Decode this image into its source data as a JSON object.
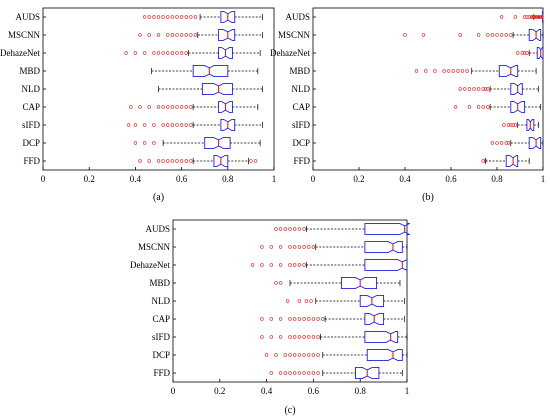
{
  "chart_data": [
    {
      "type": "boxplot",
      "panel_label": "(a)",
      "categories": [
        "AUDS",
        "MSCNN",
        "DehazeNet",
        "MBD",
        "NLD",
        "CAP",
        "sIFD",
        "DCP",
        "FFD"
      ],
      "xlim": [
        0,
        1
      ],
      "xticks": [
        "0",
        "0.2",
        "0.4",
        "0.6",
        "0.8",
        "1"
      ],
      "grid": false,
      "boxes": [
        {
          "q1": 0.77,
          "median": 0.8,
          "q3": 0.83,
          "whisker_low": 0.68,
          "whisker_high": 0.95,
          "outliers": [
            0.44,
            0.46,
            0.48,
            0.5,
            0.52,
            0.54,
            0.56,
            0.58,
            0.6,
            0.62,
            0.64,
            0.66
          ]
        },
        {
          "q1": 0.76,
          "median": 0.8,
          "q3": 0.83,
          "whisker_low": 0.67,
          "whisker_high": 0.95,
          "outliers": [
            0.42,
            0.46,
            0.5,
            0.54,
            0.56,
            0.58,
            0.6,
            0.62,
            0.64,
            0.66
          ]
        },
        {
          "q1": 0.76,
          "median": 0.79,
          "q3": 0.82,
          "whisker_low": 0.63,
          "whisker_high": 0.94,
          "outliers": [
            0.36,
            0.4,
            0.44,
            0.48,
            0.5,
            0.52,
            0.54,
            0.56,
            0.58,
            0.6,
            0.62
          ]
        },
        {
          "q1": 0.65,
          "median": 0.72,
          "q3": 0.8,
          "whisker_low": 0.47,
          "whisker_high": 0.93,
          "outliers": []
        },
        {
          "q1": 0.69,
          "median": 0.76,
          "q3": 0.82,
          "whisker_low": 0.5,
          "whisker_high": 0.95,
          "outliers": []
        },
        {
          "q1": 0.76,
          "median": 0.79,
          "q3": 0.82,
          "whisker_low": 0.65,
          "whisker_high": 0.93,
          "outliers": [
            0.38,
            0.42,
            0.46,
            0.5,
            0.52,
            0.54,
            0.56,
            0.58,
            0.6,
            0.62,
            0.64
          ]
        },
        {
          "q1": 0.77,
          "median": 0.8,
          "q3": 0.83,
          "whisker_low": 0.65,
          "whisker_high": 0.95,
          "outliers": [
            0.37,
            0.4,
            0.44,
            0.48,
            0.52,
            0.54,
            0.56,
            0.58,
            0.6,
            0.62,
            0.64
          ]
        },
        {
          "q1": 0.7,
          "median": 0.76,
          "q3": 0.81,
          "whisker_low": 0.52,
          "whisker_high": 0.94,
          "outliers": [
            0.4,
            0.44,
            0.48
          ]
        },
        {
          "q1": 0.74,
          "median": 0.77,
          "q3": 0.8,
          "whisker_low": 0.65,
          "whisker_high": 0.89,
          "outliers": [
            0.42,
            0.46,
            0.5,
            0.52,
            0.54,
            0.56,
            0.58,
            0.6,
            0.62,
            0.64,
            0.9,
            0.92
          ]
        }
      ]
    },
    {
      "type": "boxplot",
      "panel_label": "(b)",
      "categories": [
        "AUDS",
        "MSCNN",
        "DehazeNet",
        "MBD",
        "NLD",
        "CAP",
        "sIFD",
        "DCP",
        "FFD"
      ],
      "xlim": [
        0,
        1
      ],
      "xticks": [
        "0",
        "0.2",
        "0.4",
        "0.6",
        "0.8",
        "1"
      ],
      "grid": false,
      "boxes": [
        {
          "q1": 0.998,
          "median": 0.999,
          "q3": 1.0,
          "whisker_low": 0.96,
          "whisker_high": 1.0,
          "outliers": [
            0.82,
            0.88,
            0.92,
            0.93,
            0.94,
            0.95,
            0.955,
            0.96,
            0.965,
            0.97,
            0.975,
            0.98,
            0.985,
            0.99,
            0.995
          ]
        },
        {
          "q1": 0.94,
          "median": 0.97,
          "q3": 0.99,
          "whisker_low": 0.87,
          "whisker_high": 1.0,
          "outliers": [
            0.4,
            0.48,
            0.64,
            0.72,
            0.76,
            0.78,
            0.8,
            0.82,
            0.84,
            0.86
          ]
        },
        {
          "q1": 0.975,
          "median": 0.99,
          "q3": 1.0,
          "whisker_low": 0.94,
          "whisker_high": 1.0,
          "outliers": [
            0.89,
            0.91,
            0.92,
            0.93
          ]
        },
        {
          "q1": 0.81,
          "median": 0.86,
          "q3": 0.89,
          "whisker_low": 0.69,
          "whisker_high": 0.97,
          "outliers": [
            0.45,
            0.49,
            0.53,
            0.57,
            0.59,
            0.61,
            0.63,
            0.65,
            0.67
          ]
        },
        {
          "q1": 0.86,
          "median": 0.89,
          "q3": 0.91,
          "whisker_low": 0.77,
          "whisker_high": 0.98,
          "outliers": [
            0.64,
            0.66,
            0.68,
            0.7,
            0.72,
            0.74,
            0.75,
            0.76
          ]
        },
        {
          "q1": 0.86,
          "median": 0.89,
          "q3": 0.92,
          "whisker_low": 0.77,
          "whisker_high": 0.99,
          "outliers": [
            0.62,
            0.68,
            0.72,
            0.74,
            0.76
          ]
        },
        {
          "q1": 0.93,
          "median": 0.945,
          "q3": 0.96,
          "whisker_low": 0.89,
          "whisker_high": 0.98,
          "outliers": [
            0.83,
            0.85,
            0.86,
            0.87,
            0.88
          ]
        },
        {
          "q1": 0.94,
          "median": 0.97,
          "q3": 0.99,
          "whisker_low": 0.86,
          "whisker_high": 1.0,
          "outliers": [
            0.78,
            0.8,
            0.82,
            0.84,
            0.85
          ]
        },
        {
          "q1": 0.84,
          "median": 0.87,
          "q3": 0.89,
          "whisker_low": 0.75,
          "whisker_high": 0.94,
          "outliers": [
            0.74,
            0.75
          ]
        }
      ]
    },
    {
      "type": "boxplot",
      "panel_label": "(c)",
      "categories": [
        "AUDS",
        "MSCNN",
        "DehazeNet",
        "MBD",
        "NLD",
        "CAP",
        "sIFD",
        "DCP",
        "FFD"
      ],
      "xlim": [
        0,
        1
      ],
      "xticks": [
        "0",
        "0.2",
        "0.4",
        "0.6",
        "0.8",
        "1"
      ],
      "grid": false,
      "boxes": [
        {
          "q1": 0.82,
          "median": 0.99,
          "q3": 1.0,
          "whisker_low": 0.57,
          "whisker_high": 1.0,
          "outliers": [
            0.44,
            0.46,
            0.48,
            0.5,
            0.52,
            0.54,
            0.56
          ]
        },
        {
          "q1": 0.82,
          "median": 0.94,
          "q3": 0.98,
          "whisker_low": 0.61,
          "whisker_high": 1.0,
          "outliers": [
            0.38,
            0.42,
            0.46,
            0.5,
            0.52,
            0.54,
            0.56,
            0.58,
            0.6
          ]
        },
        {
          "q1": 0.82,
          "median": 0.98,
          "q3": 1.0,
          "whisker_low": 0.57,
          "whisker_high": 1.0,
          "outliers": [
            0.34,
            0.38,
            0.42,
            0.46,
            0.5,
            0.52,
            0.54,
            0.56
          ]
        },
        {
          "q1": 0.72,
          "median": 0.8,
          "q3": 0.87,
          "whisker_low": 0.5,
          "whisker_high": 0.97,
          "outliers": [
            0.44,
            0.46
          ]
        },
        {
          "q1": 0.8,
          "median": 0.85,
          "q3": 0.9,
          "whisker_low": 0.61,
          "whisker_high": 0.99,
          "outliers": [
            0.49,
            0.54,
            0.57,
            0.59
          ]
        },
        {
          "q1": 0.82,
          "median": 0.86,
          "q3": 0.9,
          "whisker_low": 0.65,
          "whisker_high": 0.99,
          "outliers": [
            0.38,
            0.42,
            0.46,
            0.5,
            0.52,
            0.54,
            0.56,
            0.58,
            0.6,
            0.62,
            0.64
          ]
        },
        {
          "q1": 0.82,
          "median": 0.93,
          "q3": 0.96,
          "whisker_low": 0.63,
          "whisker_high": 1.0,
          "outliers": [
            0.38,
            0.42,
            0.46,
            0.5,
            0.52,
            0.54,
            0.56,
            0.58,
            0.6,
            0.62
          ]
        },
        {
          "q1": 0.83,
          "median": 0.94,
          "q3": 0.98,
          "whisker_low": 0.64,
          "whisker_high": 1.0,
          "outliers": [
            0.4,
            0.44,
            0.48,
            0.5,
            0.52,
            0.54,
            0.56,
            0.58,
            0.6,
            0.62
          ]
        },
        {
          "q1": 0.78,
          "median": 0.83,
          "q3": 0.88,
          "whisker_low": 0.64,
          "whisker_high": 0.98,
          "outliers": [
            0.42,
            0.46,
            0.48,
            0.5,
            0.52,
            0.54,
            0.56,
            0.58,
            0.6,
            0.62
          ]
        }
      ]
    }
  ],
  "colors": {
    "box": "#1f1fe0",
    "median": "#e02020",
    "outlier": "#e02020",
    "whisker": "#000000",
    "axis": "#000000"
  }
}
